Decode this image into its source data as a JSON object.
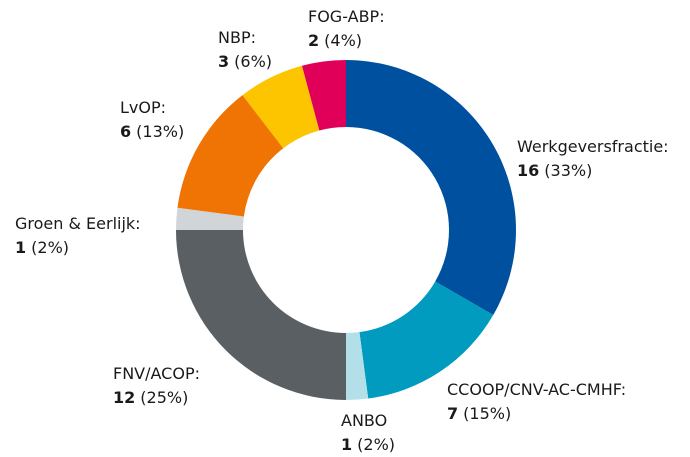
{
  "chart_data": {
    "type": "donut",
    "categories": [
      "Werkgeversfractie:",
      "CCOOP/CNV-AC-CMHF:",
      "ANBO",
      "FNV/ACOP:",
      "Groen & Eerlijk:",
      "LvOP:",
      "NBP:",
      "FOG-ABP:"
    ],
    "values": [
      16,
      7,
      1,
      12,
      1,
      6,
      3,
      2
    ],
    "percent_labels": [
      "(33%)",
      "(15%)",
      "(2%)",
      "(25%)",
      "(2%)",
      "(13%)",
      "(6%)",
      "(4%)"
    ],
    "colors": [
      "#0050a0",
      "#009bbf",
      "#b3dfe8",
      "#595f63",
      "#d2d5d8",
      "#ef7404",
      "#fdc400",
      "#e0005a"
    ]
  }
}
